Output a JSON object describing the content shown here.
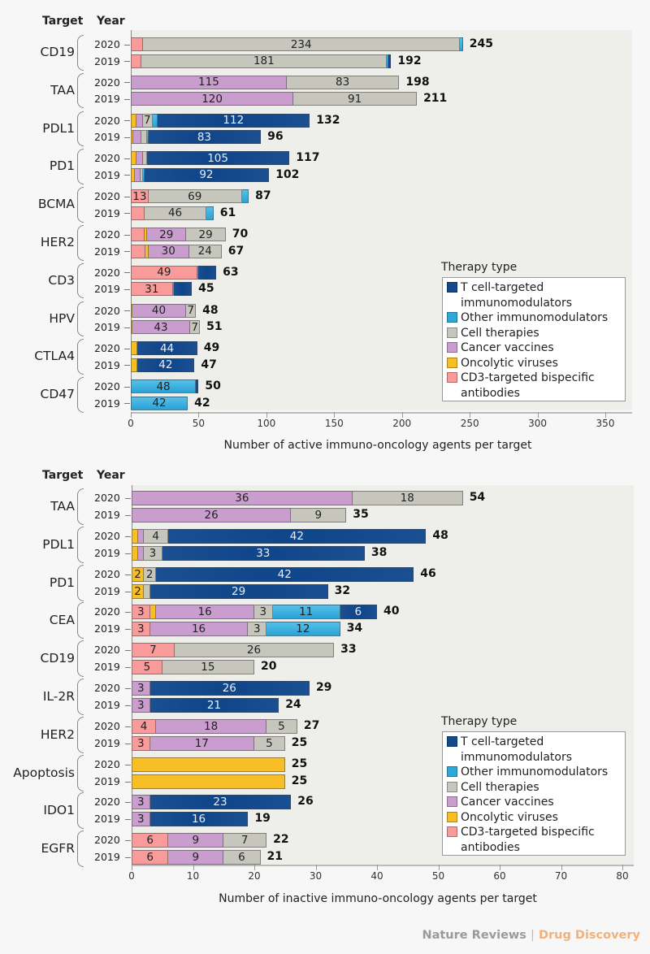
{
  "colors": {
    "tcell": "#124a8c",
    "other": "#2ea8d9",
    "cell": "#c7c6bd",
    "vaccine": "#c99ecf",
    "oncolytic": "#f7be26",
    "cd3": "#f99b9b"
  },
  "footer": {
    "journal": "Nature Reviews",
    "separator": "|",
    "subjournal": "Drug Discovery"
  },
  "chart_data": [
    {
      "type": "bar",
      "orientation": "horizontal",
      "stacked": true,
      "header": {
        "target": "Target",
        "year": "Year"
      },
      "xlabel": "Number of active immuno-oncology agents per target",
      "xlim": [
        0,
        360
      ],
      "xticks": [
        0,
        50,
        100,
        150,
        200,
        250,
        300,
        350
      ],
      "legend": {
        "title": "Therapy type",
        "placement": "bottom-right",
        "items": [
          {
            "key": "tcell",
            "label": "T cell-targeted immunomodulators"
          },
          {
            "key": "other",
            "label": "Other immunomodulators"
          },
          {
            "key": "cell",
            "label": "Cell therapies"
          },
          {
            "key": "vaccine",
            "label": "Cancer vaccines"
          },
          {
            "key": "oncolytic",
            "label": "Oncolytic viruses"
          },
          {
            "key": "cd3",
            "label": "CD3-targeted bispecific antibodies"
          }
        ]
      },
      "segment_order": [
        "cd3",
        "oncolytic",
        "vaccine",
        "cell",
        "other",
        "tcell"
      ],
      "groups": [
        {
          "target": "CD19",
          "rows": [
            {
              "year": "2020",
              "total": 245,
              "segments": {
                "cd3": 9,
                "cell": 234,
                "other": 2
              },
              "labels": {
                "cell": "234"
              }
            },
            {
              "year": "2019",
              "total": 192,
              "segments": {
                "cd3": 8,
                "cell": 181,
                "other": 1,
                "tcell": 2
              },
              "labels": {
                "cell": "181"
              }
            }
          ]
        },
        {
          "target": "TAA",
          "rows": [
            {
              "year": "2020",
              "total": 198,
              "segments": {
                "vaccine": 115,
                "cell": 83
              },
              "labels": {
                "vaccine": "115",
                "cell": "83"
              }
            },
            {
              "year": "2019",
              "total": 211,
              "segments": {
                "vaccine": 120,
                "cell": 91
              },
              "labels": {
                "vaccine": "120",
                "cell": "91"
              }
            }
          ]
        },
        {
          "target": "PDL1",
          "rows": [
            {
              "year": "2020",
              "total": 132,
              "segments": {
                "oncolytic": 4,
                "vaccine": 5,
                "cell": 7,
                "other": 4,
                "tcell": 112
              },
              "labels": {
                "cell": "7",
                "tcell": "112"
              }
            },
            {
              "year": "2019",
              "total": 96,
              "segments": {
                "oncolytic": 2,
                "vaccine": 6,
                "cell": 4,
                "other": 1,
                "tcell": 83
              },
              "labels": {
                "tcell": "83"
              }
            }
          ]
        },
        {
          "target": "PD1",
          "rows": [
            {
              "year": "2020",
              "total": 117,
              "segments": {
                "oncolytic": 4,
                "vaccine": 5,
                "cell": 3,
                "tcell": 105
              },
              "labels": {
                "tcell": "105"
              }
            },
            {
              "year": "2019",
              "total": 102,
              "segments": {
                "oncolytic": 3,
                "vaccine": 4,
                "cell": 2,
                "other": 1,
                "tcell": 92
              },
              "labels": {
                "tcell": "92"
              }
            }
          ]
        },
        {
          "target": "BCMA",
          "rows": [
            {
              "year": "2020",
              "total": 87,
              "segments": {
                "cd3": 13,
                "cell": 69,
                "other": 5
              },
              "labels": {
                "cd3": "13",
                "cell": "69"
              }
            },
            {
              "year": "2019",
              "total": 61,
              "segments": {
                "cd3": 10,
                "cell": 46,
                "other": 5
              },
              "labels": {
                "cell": "46"
              }
            }
          ]
        },
        {
          "target": "HER2",
          "rows": [
            {
              "year": "2020",
              "total": 70,
              "segments": {
                "cd3": 10,
                "oncolytic": 2,
                "vaccine": 29,
                "cell": 29
              },
              "labels": {
                "vaccine": "29",
                "cell": "29"
              }
            },
            {
              "year": "2019",
              "total": 67,
              "segments": {
                "cd3": 11,
                "oncolytic": 2,
                "vaccine": 30,
                "cell": 24
              },
              "labels": {
                "vaccine": "30",
                "cell": "24"
              }
            }
          ]
        },
        {
          "target": "CD3",
          "rows": [
            {
              "year": "2020",
              "total": 63,
              "segments": {
                "cd3": 49,
                "cell": 1,
                "tcell": 13
              },
              "labels": {
                "cd3": "49"
              }
            },
            {
              "year": "2019",
              "total": 45,
              "segments": {
                "cd3": 31,
                "cell": 1,
                "tcell": 13
              },
              "labels": {
                "cd3": "31"
              }
            }
          ]
        },
        {
          "target": "HPV",
          "rows": [
            {
              "year": "2020",
              "total": 48,
              "segments": {
                "oncolytic": 1,
                "vaccine": 40,
                "cell": 7
              },
              "labels": {
                "vaccine": "40",
                "cell": "7"
              }
            },
            {
              "year": "2019",
              "total": 51,
              "segments": {
                "oncolytic": 1,
                "vaccine": 43,
                "cell": 7
              },
              "labels": {
                "vaccine": "43",
                "cell": "7"
              }
            }
          ]
        },
        {
          "target": "CTLA4",
          "rows": [
            {
              "year": "2020",
              "total": 49,
              "segments": {
                "oncolytic": 5,
                "tcell": 44
              },
              "labels": {
                "tcell": "44"
              }
            },
            {
              "year": "2019",
              "total": 47,
              "segments": {
                "oncolytic": 5,
                "tcell": 42
              },
              "labels": {
                "tcell": "42"
              }
            }
          ]
        },
        {
          "target": "CD47",
          "rows": [
            {
              "year": "2020",
              "total": 50,
              "segments": {
                "other": 48,
                "tcell": 2
              },
              "labels": {
                "other": "48"
              }
            },
            {
              "year": "2019",
              "total": 42,
              "segments": {
                "other": 42
              },
              "labels": {
                "other": "42"
              }
            }
          ]
        }
      ]
    },
    {
      "type": "bar",
      "orientation": "horizontal",
      "stacked": true,
      "header": {
        "target": "Target",
        "year": "Year"
      },
      "xlabel": "Number of inactive immuno-oncology agents per target",
      "xlim": [
        0,
        82
      ],
      "xticks": [
        0,
        10,
        20,
        30,
        40,
        50,
        60,
        70,
        80
      ],
      "legend": {
        "title": "Therapy type",
        "placement": "bottom-right",
        "items": [
          {
            "key": "tcell",
            "label": "T cell-targeted immunomodulators"
          },
          {
            "key": "other",
            "label": "Other immunomodulators"
          },
          {
            "key": "cell",
            "label": "Cell therapies"
          },
          {
            "key": "vaccine",
            "label": "Cancer vaccines"
          },
          {
            "key": "oncolytic",
            "label": "Oncolytic viruses"
          },
          {
            "key": "cd3",
            "label": "CD3-targeted bispecific antibodies"
          }
        ]
      },
      "segment_order": [
        "cd3",
        "oncolytic",
        "vaccine",
        "cell",
        "other",
        "tcell"
      ],
      "groups": [
        {
          "target": "TAA",
          "rows": [
            {
              "year": "2020",
              "total": 54,
              "segments": {
                "vaccine": 36,
                "cell": 18
              },
              "labels": {
                "vaccine": "36",
                "cell": "18"
              }
            },
            {
              "year": "2019",
              "total": 35,
              "segments": {
                "vaccine": 26,
                "cell": 9
              },
              "labels": {
                "vaccine": "26",
                "cell": "9"
              }
            }
          ]
        },
        {
          "target": "PDL1",
          "rows": [
            {
              "year": "2020",
              "total": 48,
              "segments": {
                "oncolytic": 1,
                "vaccine": 1,
                "cell": 4,
                "tcell": 42
              },
              "labels": {
                "cell": "4",
                "tcell": "42"
              }
            },
            {
              "year": "2019",
              "total": 38,
              "segments": {
                "oncolytic": 1,
                "vaccine": 1,
                "cell": 3,
                "tcell": 33
              },
              "labels": {
                "cell": "3",
                "tcell": "33"
              }
            }
          ]
        },
        {
          "target": "PD1",
          "rows": [
            {
              "year": "2020",
              "total": 46,
              "segments": {
                "oncolytic": 2,
                "cell": 2,
                "tcell": 42
              },
              "labels": {
                "oncolytic": "2",
                "cell": "2",
                "tcell": "42"
              }
            },
            {
              "year": "2019",
              "total": 32,
              "segments": {
                "oncolytic": 2,
                "cell": 1,
                "tcell": 29
              },
              "labels": {
                "oncolytic": "2",
                "tcell": "29"
              }
            }
          ]
        },
        {
          "target": "CEA",
          "rows": [
            {
              "year": "2020",
              "total": 40,
              "segments": {
                "cd3": 3,
                "oncolytic": 1,
                "vaccine": 16,
                "cell": 3,
                "other": 11,
                "tcell": 6
              },
              "labels": {
                "cd3": "3",
                "vaccine": "16",
                "cell": "3",
                "other": "11",
                "tcell": "6"
              }
            },
            {
              "year": "2019",
              "total": 34,
              "segments": {
                "cd3": 3,
                "vaccine": 16,
                "cell": 3,
                "other": 12
              },
              "labels": {
                "cd3": "3",
                "vaccine": "16",
                "cell": "3",
                "other": "12"
              }
            }
          ]
        },
        {
          "target": "CD19",
          "rows": [
            {
              "year": "2020",
              "total": 33,
              "segments": {
                "cd3": 7,
                "cell": 26
              },
              "labels": {
                "cd3": "7",
                "cell": "26"
              }
            },
            {
              "year": "2019",
              "total": 20,
              "segments": {
                "cd3": 5,
                "cell": 15
              },
              "labels": {
                "cd3": "5",
                "cell": "15"
              }
            }
          ]
        },
        {
          "target": "IL-2R",
          "rows": [
            {
              "year": "2020",
              "total": 29,
              "segments": {
                "vaccine": 3,
                "tcell": 26
              },
              "labels": {
                "vaccine": "3",
                "tcell": "26"
              }
            },
            {
              "year": "2019",
              "total": 24,
              "segments": {
                "vaccine": 3,
                "tcell": 21
              },
              "labels": {
                "vaccine": "3",
                "tcell": "21"
              }
            }
          ]
        },
        {
          "target": "HER2",
          "rows": [
            {
              "year": "2020",
              "total": 27,
              "segments": {
                "cd3": 4,
                "vaccine": 18,
                "cell": 5
              },
              "labels": {
                "cd3": "4",
                "vaccine": "18",
                "cell": "5"
              }
            },
            {
              "year": "2019",
              "total": 25,
              "segments": {
                "cd3": 3,
                "vaccine": 17,
                "cell": 5
              },
              "labels": {
                "cd3": "3",
                "vaccine": "17",
                "cell": "5"
              }
            }
          ]
        },
        {
          "target": "Apoptosis",
          "rows": [
            {
              "year": "2020",
              "total": 25,
              "segments": {
                "oncolytic": 25
              },
              "labels": {}
            },
            {
              "year": "2019",
              "total": 25,
              "segments": {
                "oncolytic": 25
              },
              "labels": {}
            }
          ]
        },
        {
          "target": "IDO1",
          "rows": [
            {
              "year": "2020",
              "total": 26,
              "segments": {
                "vaccine": 3,
                "tcell": 23
              },
              "labels": {
                "vaccine": "3",
                "tcell": "23"
              }
            },
            {
              "year": "2019",
              "total": 19,
              "segments": {
                "vaccine": 3,
                "tcell": 16
              },
              "labels": {
                "vaccine": "3",
                "tcell": "16"
              }
            }
          ]
        },
        {
          "target": "EGFR",
          "rows": [
            {
              "year": "2020",
              "total": 22,
              "segments": {
                "cd3": 6,
                "vaccine": 9,
                "cell": 7
              },
              "labels": {
                "cd3": "6",
                "vaccine": "9",
                "cell": "7"
              }
            },
            {
              "year": "2019",
              "total": 21,
              "segments": {
                "cd3": 6,
                "vaccine": 9,
                "cell": 6
              },
              "labels": {
                "cd3": "6",
                "vaccine": "9",
                "cell": "6"
              }
            }
          ]
        }
      ]
    }
  ]
}
